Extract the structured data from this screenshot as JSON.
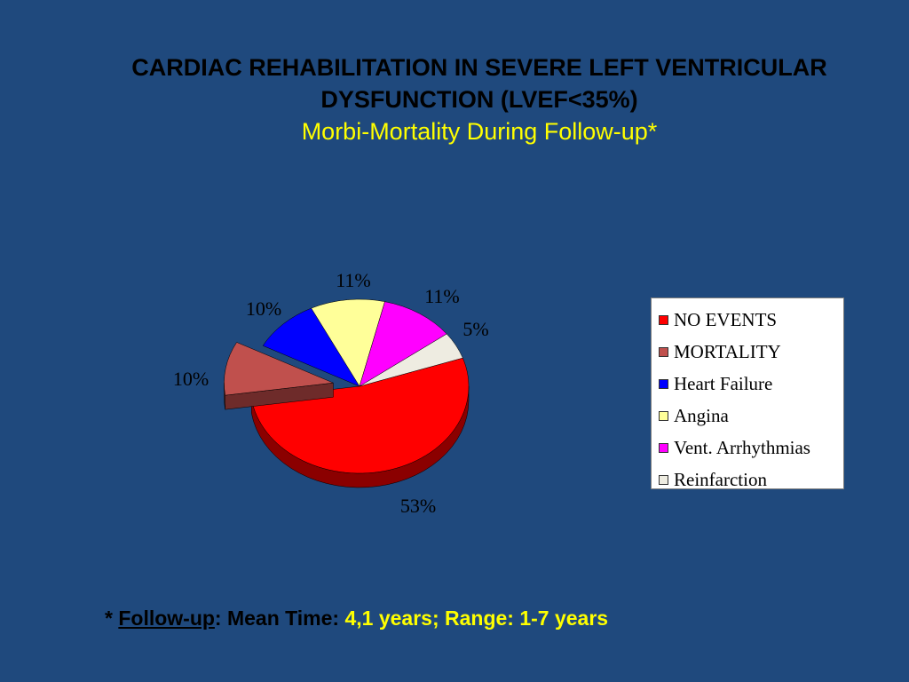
{
  "slide": {
    "title_line1": "CARDIAC REHABILITATION IN SEVERE LEFT VENTRICULAR",
    "title_line2": "DYSFUNCTION (LVEF<35%)",
    "subtitle": "Morbi-Mortality During Follow-up*"
  },
  "footnote": {
    "asterisk": "* ",
    "label": "Follow-up",
    "colon_text": ": Mean Time: ",
    "mean_value": "4,1 years; Range: 1-7 years"
  },
  "chart_data": {
    "type": "pie",
    "title": "Morbi-Mortality During Follow-up*",
    "legend_position": "right",
    "slices": [
      {
        "name": "NO  EVENTS",
        "value": 53,
        "label": "53%",
        "color": "#FF0000",
        "side_color": "#8B0000",
        "exploded": false
      },
      {
        "name": "MORTALITY",
        "value": 10,
        "label": "10%",
        "color": "#C0504D",
        "side_color": "#6E2B2A",
        "exploded": true
      },
      {
        "name": "Heart Failure",
        "value": 10,
        "label": "10%",
        "color": "#0000FF",
        "side_color": "#00008B",
        "exploded": false
      },
      {
        "name": "Angina",
        "value": 11,
        "label": "11%",
        "color": "#FFFF99",
        "side_color": "#A6A660",
        "exploded": false
      },
      {
        "name": "Vent. Arrhythmias",
        "value": 11,
        "label": "11%",
        "color": "#FF00FF",
        "side_color": "#8B008B",
        "exploded": false
      },
      {
        "name": "Reinfarction",
        "value": 5,
        "label": "5%",
        "color": "#EEECE1",
        "side_color": "#9C9A90",
        "exploded": false
      }
    ]
  }
}
